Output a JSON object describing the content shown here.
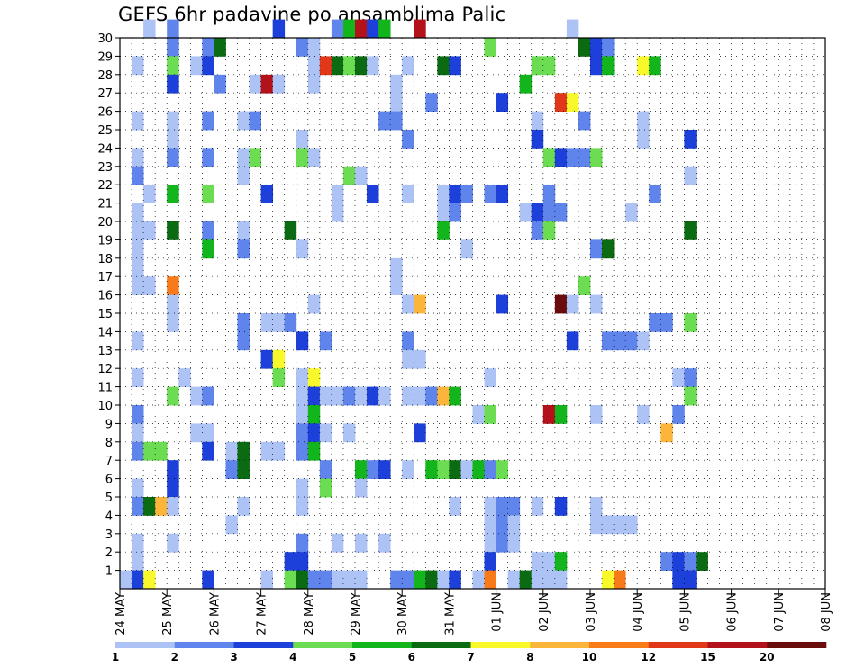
{
  "chart_data": {
    "type": "heatmap",
    "title": "GEFS 6hr padavine po ansamblima Palic",
    "xlabel": "",
    "ylabel": "",
    "x_tick_labels": [
      "24 MAY",
      "25 MAY",
      "26 MAY",
      "27 MAY",
      "28 MAY",
      "29 MAY",
      "30 MAY",
      "31 MAY",
      "01 JUN",
      "02 JUN",
      "03 JUN",
      "04 JUN",
      "05 JUN",
      "06 JUN",
      "07 JUN",
      "08 JUN"
    ],
    "x_unit": "6-hour step (4 per day), starting 24 MAY 00",
    "y_tick_labels": [
      "1",
      "2",
      "3",
      "4",
      "5",
      "6",
      "7",
      "8",
      "9",
      "10",
      "11",
      "12",
      "13",
      "14",
      "15",
      "16",
      "17",
      "18",
      "19",
      "20",
      "21",
      "22",
      "23",
      "24",
      "25",
      "26",
      "27",
      "28",
      "29",
      "30"
    ],
    "xlim": [
      0,
      60
    ],
    "ylim": [
      0,
      30
    ],
    "grid": true,
    "colorbar": {
      "levels": [
        "1",
        "2",
        "3",
        "4",
        "5",
        "6",
        "7",
        "8",
        "10",
        "12",
        "15",
        "20"
      ],
      "colors": [
        "#adc3f5",
        "#5f85ec",
        "#1c40d9",
        "#6cdd52",
        "#12b51c",
        "#0a6b12",
        "#f8f82a",
        "#fbb53b",
        "#f97a18",
        "#e03818",
        "#b4121a",
        "#6b0c0c"
      ]
    },
    "cells": [
      [
        2,
        30,
        0
      ],
      [
        4,
        30,
        1
      ],
      [
        13,
        30,
        2
      ],
      [
        18,
        30,
        1
      ],
      [
        19,
        30,
        4
      ],
      [
        20,
        30,
        10
      ],
      [
        21,
        30,
        2
      ],
      [
        22,
        30,
        4
      ],
      [
        25,
        30,
        10
      ],
      [
        38,
        30,
        0
      ],
      [
        4,
        29,
        1
      ],
      [
        7,
        29,
        1
      ],
      [
        8,
        29,
        5
      ],
      [
        15,
        29,
        1
      ],
      [
        16,
        29,
        0
      ],
      [
        31,
        29,
        3
      ],
      [
        39,
        29,
        5
      ],
      [
        40,
        29,
        2
      ],
      [
        41,
        29,
        1
      ],
      [
        1,
        28,
        0
      ],
      [
        4,
        28,
        3
      ],
      [
        6,
        28,
        0
      ],
      [
        7,
        28,
        2
      ],
      [
        16,
        28,
        0
      ],
      [
        17,
        28,
        9
      ],
      [
        18,
        28,
        5
      ],
      [
        19,
        28,
        3
      ],
      [
        20,
        28,
        5
      ],
      [
        21,
        28,
        0
      ],
      [
        24,
        28,
        0
      ],
      [
        27,
        28,
        5
      ],
      [
        28,
        28,
        2
      ],
      [
        35,
        28,
        0
      ],
      [
        35,
        28,
        3
      ],
      [
        36,
        28,
        3
      ],
      [
        40,
        28,
        2
      ],
      [
        41,
        28,
        4
      ],
      [
        44,
        28,
        6
      ],
      [
        45,
        28,
        4
      ],
      [
        4,
        27,
        2
      ],
      [
        8,
        27,
        1
      ],
      [
        11,
        27,
        0
      ],
      [
        12,
        27,
        10
      ],
      [
        13,
        27,
        0
      ],
      [
        16,
        27,
        0
      ],
      [
        23,
        27,
        0
      ],
      [
        34,
        27,
        4
      ],
      [
        23,
        26,
        0
      ],
      [
        26,
        26,
        1
      ],
      [
        32,
        26,
        2
      ],
      [
        37,
        26,
        9
      ],
      [
        38,
        26,
        6
      ],
      [
        1,
        25,
        0
      ],
      [
        4,
        25,
        0
      ],
      [
        7,
        25,
        1
      ],
      [
        10,
        25,
        0
      ],
      [
        11,
        25,
        1
      ],
      [
        22,
        25,
        1
      ],
      [
        23,
        25,
        1
      ],
      [
        35,
        25,
        0
      ],
      [
        39,
        25,
        1
      ],
      [
        44,
        25,
        0
      ],
      [
        4,
        24,
        0
      ],
      [
        15,
        24,
        0
      ],
      [
        24,
        24,
        1
      ],
      [
        35,
        24,
        2
      ],
      [
        44,
        24,
        0
      ],
      [
        48,
        24,
        2
      ],
      [
        1,
        23,
        0
      ],
      [
        4,
        23,
        1
      ],
      [
        7,
        23,
        1
      ],
      [
        10,
        23,
        0
      ],
      [
        11,
        23,
        3
      ],
      [
        15,
        23,
        3
      ],
      [
        16,
        23,
        0
      ],
      [
        36,
        23,
        3
      ],
      [
        37,
        23,
        2
      ],
      [
        38,
        23,
        1
      ],
      [
        39,
        23,
        1
      ],
      [
        40,
        23,
        3
      ],
      [
        1,
        22,
        1
      ],
      [
        10,
        22,
        0
      ],
      [
        19,
        22,
        3
      ],
      [
        20,
        22,
        0
      ],
      [
        48,
        22,
        0
      ],
      [
        2,
        21,
        0
      ],
      [
        4,
        21,
        4
      ],
      [
        7,
        21,
        3
      ],
      [
        12,
        21,
        2
      ],
      [
        18,
        21,
        0
      ],
      [
        21,
        21,
        2
      ],
      [
        24,
        21,
        0
      ],
      [
        27,
        21,
        0
      ],
      [
        28,
        21,
        2
      ],
      [
        29,
        21,
        1
      ],
      [
        31,
        21,
        1
      ],
      [
        32,
        21,
        2
      ],
      [
        36,
        21,
        1
      ],
      [
        45,
        21,
        1
      ],
      [
        1,
        20,
        0
      ],
      [
        18,
        20,
        0
      ],
      [
        27,
        20,
        0
      ],
      [
        28,
        20,
        1
      ],
      [
        34,
        20,
        0
      ],
      [
        35,
        20,
        2
      ],
      [
        36,
        20,
        1
      ],
      [
        37,
        20,
        1
      ],
      [
        43,
        20,
        0
      ],
      [
        1,
        19,
        0
      ],
      [
        2,
        19,
        0
      ],
      [
        4,
        19,
        5
      ],
      [
        7,
        19,
        1
      ],
      [
        10,
        19,
        0
      ],
      [
        14,
        19,
        5
      ],
      [
        27,
        19,
        4
      ],
      [
        35,
        19,
        1
      ],
      [
        36,
        19,
        3
      ],
      [
        48,
        19,
        5
      ],
      [
        1,
        18,
        0
      ],
      [
        7,
        18,
        4
      ],
      [
        10,
        18,
        1
      ],
      [
        15,
        18,
        0
      ],
      [
        29,
        18,
        0
      ],
      [
        40,
        18,
        1
      ],
      [
        41,
        18,
        5
      ],
      [
        1,
        17,
        0
      ],
      [
        23,
        17,
        0
      ],
      [
        1,
        16,
        0
      ],
      [
        2,
        16,
        0
      ],
      [
        4,
        16,
        8
      ],
      [
        23,
        16,
        0
      ],
      [
        39,
        16,
        3
      ],
      [
        4,
        15,
        0
      ],
      [
        16,
        15,
        0
      ],
      [
        24,
        15,
        0
      ],
      [
        25,
        15,
        7
      ],
      [
        32,
        15,
        2
      ],
      [
        37,
        15,
        11
      ],
      [
        38,
        15,
        0
      ],
      [
        40,
        15,
        0
      ],
      [
        4,
        14,
        0
      ],
      [
        10,
        14,
        1
      ],
      [
        12,
        14,
        0
      ],
      [
        13,
        14,
        0
      ],
      [
        14,
        14,
        1
      ],
      [
        45,
        14,
        1
      ],
      [
        46,
        14,
        1
      ],
      [
        48,
        14,
        3
      ],
      [
        1,
        13,
        0
      ],
      [
        10,
        13,
        1
      ],
      [
        15,
        13,
        2
      ],
      [
        17,
        13,
        1
      ],
      [
        24,
        13,
        1
      ],
      [
        38,
        13,
        2
      ],
      [
        41,
        13,
        1
      ],
      [
        42,
        13,
        1
      ],
      [
        43,
        13,
        1
      ],
      [
        44,
        13,
        0
      ],
      [
        12,
        12,
        2
      ],
      [
        13,
        12,
        6
      ],
      [
        24,
        12,
        0
      ],
      [
        25,
        12,
        0
      ],
      [
        1,
        11,
        0
      ],
      [
        5,
        11,
        0
      ],
      [
        13,
        11,
        3
      ],
      [
        15,
        11,
        0
      ],
      [
        16,
        11,
        6
      ],
      [
        31,
        11,
        0
      ],
      [
        47,
        11,
        0
      ],
      [
        48,
        11,
        1
      ],
      [
        4,
        10,
        3
      ],
      [
        6,
        10,
        0
      ],
      [
        7,
        10,
        1
      ],
      [
        15,
        10,
        0
      ],
      [
        16,
        10,
        2
      ],
      [
        17,
        10,
        0
      ],
      [
        18,
        10,
        0
      ],
      [
        19,
        10,
        1
      ],
      [
        20,
        10,
        0
      ],
      [
        21,
        10,
        2
      ],
      [
        22,
        10,
        0
      ],
      [
        24,
        10,
        0
      ],
      [
        25,
        10,
        0
      ],
      [
        26,
        10,
        1
      ],
      [
        27,
        10,
        7
      ],
      [
        28,
        10,
        4
      ],
      [
        48,
        10,
        3
      ],
      [
        1,
        9,
        1
      ],
      [
        15,
        9,
        0
      ],
      [
        16,
        9,
        4
      ],
      [
        30,
        9,
        0
      ],
      [
        31,
        9,
        3
      ],
      [
        36,
        9,
        10
      ],
      [
        37,
        9,
        4
      ],
      [
        40,
        9,
        0
      ],
      [
        44,
        9,
        0
      ],
      [
        47,
        9,
        1
      ],
      [
        1,
        8,
        0
      ],
      [
        6,
        8,
        0
      ],
      [
        7,
        8,
        0
      ],
      [
        15,
        8,
        1
      ],
      [
        16,
        8,
        2
      ],
      [
        17,
        8,
        0
      ],
      [
        19,
        8,
        0
      ],
      [
        25,
        8,
        2
      ],
      [
        46,
        8,
        7
      ],
      [
        1,
        7,
        1
      ],
      [
        2,
        7,
        3
      ],
      [
        3,
        7,
        3
      ],
      [
        7,
        7,
        2
      ],
      [
        9,
        7,
        0
      ],
      [
        10,
        7,
        5
      ],
      [
        12,
        7,
        0
      ],
      [
        13,
        7,
        0
      ],
      [
        15,
        7,
        1
      ],
      [
        16,
        7,
        4
      ],
      [
        4,
        6,
        2
      ],
      [
        9,
        6,
        1
      ],
      [
        10,
        6,
        5
      ],
      [
        17,
        6,
        1
      ],
      [
        20,
        6,
        4
      ],
      [
        21,
        6,
        1
      ],
      [
        22,
        6,
        2
      ],
      [
        24,
        6,
        0
      ],
      [
        26,
        6,
        4
      ],
      [
        27,
        6,
        3
      ],
      [
        28,
        6,
        5
      ],
      [
        29,
        6,
        0
      ],
      [
        30,
        6,
        4
      ],
      [
        31,
        6,
        1
      ],
      [
        32,
        6,
        3
      ],
      [
        1,
        5,
        0
      ],
      [
        4,
        5,
        2
      ],
      [
        15,
        5,
        0
      ],
      [
        17,
        5,
        3
      ],
      [
        20,
        5,
        0
      ],
      [
        1,
        4,
        1
      ],
      [
        2,
        4,
        5
      ],
      [
        3,
        4,
        7
      ],
      [
        4,
        4,
        0
      ],
      [
        10,
        4,
        0
      ],
      [
        15,
        4,
        0
      ],
      [
        28,
        4,
        0
      ],
      [
        31,
        4,
        0
      ],
      [
        32,
        4,
        1
      ],
      [
        33,
        4,
        1
      ],
      [
        35,
        4,
        0
      ],
      [
        37,
        4,
        2
      ],
      [
        40,
        4,
        0
      ],
      [
        9,
        3,
        0
      ],
      [
        31,
        3,
        0
      ],
      [
        32,
        3,
        1
      ],
      [
        33,
        3,
        0
      ],
      [
        40,
        3,
        0
      ],
      [
        41,
        3,
        0
      ],
      [
        42,
        3,
        0
      ],
      [
        43,
        3,
        0
      ],
      [
        1,
        2,
        0
      ],
      [
        4,
        2,
        0
      ],
      [
        15,
        2,
        1
      ],
      [
        18,
        2,
        0
      ],
      [
        20,
        2,
        0
      ],
      [
        22,
        2,
        0
      ],
      [
        31,
        2,
        0
      ],
      [
        32,
        2,
        1
      ],
      [
        33,
        2,
        0
      ],
      [
        1,
        1,
        0
      ],
      [
        14,
        1,
        2
      ],
      [
        15,
        1,
        2
      ],
      [
        31,
        1,
        2
      ],
      [
        35,
        1,
        0
      ],
      [
        36,
        1,
        0
      ],
      [
        37,
        1,
        4
      ],
      [
        46,
        1,
        1
      ],
      [
        47,
        1,
        2
      ],
      [
        48,
        1,
        1
      ],
      [
        49,
        1,
        5
      ],
      [
        0,
        0,
        0
      ],
      [
        1,
        0,
        2
      ],
      [
        2,
        0,
        6
      ],
      [
        7,
        0,
        2
      ],
      [
        12,
        0,
        0
      ],
      [
        14,
        0,
        3
      ],
      [
        15,
        0,
        5
      ],
      [
        16,
        0,
        1
      ],
      [
        17,
        0,
        1
      ],
      [
        18,
        0,
        0
      ],
      [
        19,
        0,
        0
      ],
      [
        20,
        0,
        0
      ],
      [
        23,
        0,
        1
      ],
      [
        24,
        0,
        1
      ],
      [
        25,
        0,
        4
      ],
      [
        26,
        0,
        5
      ],
      [
        27,
        0,
        0
      ],
      [
        28,
        0,
        2
      ],
      [
        30,
        0,
        0
      ],
      [
        31,
        0,
        8
      ],
      [
        33,
        0,
        0
      ],
      [
        34,
        0,
        5
      ],
      [
        35,
        0,
        0
      ],
      [
        36,
        0,
        0
      ],
      [
        37,
        0,
        0
      ],
      [
        41,
        0,
        6
      ],
      [
        42,
        0,
        8
      ],
      [
        47,
        0,
        2
      ],
      [
        48,
        0,
        2
      ]
    ]
  }
}
